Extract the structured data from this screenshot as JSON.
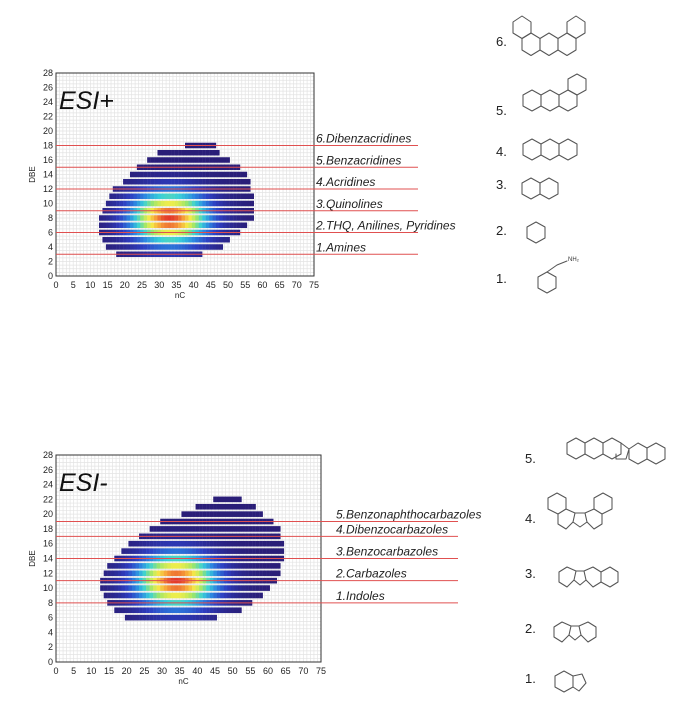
{
  "chart_data": [
    {
      "type": "heatmap",
      "panel_label": "ESI+",
      "xlabel": "nC",
      "ylabel": "DBE",
      "xlim": [
        0,
        75
      ],
      "ylim": [
        0,
        28
      ],
      "xticks": [
        0,
        5,
        10,
        15,
        20,
        25,
        30,
        35,
        40,
        45,
        50,
        55,
        60,
        65,
        70,
        75
      ],
      "yticks": [
        0,
        2,
        4,
        6,
        8,
        10,
        12,
        14,
        16,
        18,
        20,
        22,
        24,
        26,
        28
      ],
      "grid": true,
      "intensity_peak": {
        "nC": 33,
        "DBE": 8
      },
      "rows": [
        {
          "dbe": 3,
          "nc_min": 18,
          "nc_max": 42
        },
        {
          "dbe": 4,
          "nc_min": 15,
          "nc_max": 48
        },
        {
          "dbe": 5,
          "nc_min": 14,
          "nc_max": 50
        },
        {
          "dbe": 6,
          "nc_min": 13,
          "nc_max": 53
        },
        {
          "dbe": 7,
          "nc_min": 13,
          "nc_max": 55
        },
        {
          "dbe": 8,
          "nc_min": 13,
          "nc_max": 57
        },
        {
          "dbe": 9,
          "nc_min": 14,
          "nc_max": 57
        },
        {
          "dbe": 10,
          "nc_min": 15,
          "nc_max": 57
        },
        {
          "dbe": 11,
          "nc_min": 16,
          "nc_max": 57
        },
        {
          "dbe": 12,
          "nc_min": 17,
          "nc_max": 56
        },
        {
          "dbe": 13,
          "nc_min": 20,
          "nc_max": 56
        },
        {
          "dbe": 14,
          "nc_min": 22,
          "nc_max": 55
        },
        {
          "dbe": 15,
          "nc_min": 24,
          "nc_max": 53
        },
        {
          "dbe": 16,
          "nc_min": 27,
          "nc_max": 50
        },
        {
          "dbe": 17,
          "nc_min": 30,
          "nc_max": 47
        },
        {
          "dbe": 18,
          "nc_min": 38,
          "nc_max": 46
        }
      ],
      "class_lines": [
        {
          "dbe": 3,
          "label": "1.Amines"
        },
        {
          "dbe": 6,
          "label": "2.THQ, Anilines, Pyridines"
        },
        {
          "dbe": 9,
          "label": "3.Quinolines"
        },
        {
          "dbe": 12,
          "label": "4.Acridines"
        },
        {
          "dbe": 15,
          "label": "5.Benzacridines"
        },
        {
          "dbe": 18,
          "label": "6.Dibenzacridines"
        }
      ],
      "structure_labels": [
        "6.",
        "5.",
        "4.",
        "3.",
        "2.",
        "1."
      ],
      "structure_subscript": "NH₂"
    },
    {
      "type": "heatmap",
      "panel_label": "ESI-",
      "xlabel": "nC",
      "ylabel": "DBE",
      "xlim": [
        0,
        75
      ],
      "ylim": [
        0,
        28
      ],
      "xticks": [
        0,
        5,
        10,
        15,
        20,
        25,
        30,
        35,
        40,
        45,
        50,
        55,
        60,
        65,
        70,
        75
      ],
      "yticks": [
        0,
        2,
        4,
        6,
        8,
        10,
        12,
        14,
        16,
        18,
        20,
        22,
        24,
        26,
        28
      ],
      "grid": true,
      "intensity_peak": {
        "nC": 34,
        "DBE": 11
      },
      "rows": [
        {
          "dbe": 6,
          "nc_min": 20,
          "nc_max": 45
        },
        {
          "dbe": 7,
          "nc_min": 17,
          "nc_max": 52
        },
        {
          "dbe": 8,
          "nc_min": 15,
          "nc_max": 55
        },
        {
          "dbe": 9,
          "nc_min": 14,
          "nc_max": 58
        },
        {
          "dbe": 10,
          "nc_min": 13,
          "nc_max": 60
        },
        {
          "dbe": 11,
          "nc_min": 13,
          "nc_max": 62
        },
        {
          "dbe": 12,
          "nc_min": 14,
          "nc_max": 63
        },
        {
          "dbe": 13,
          "nc_min": 15,
          "nc_max": 63
        },
        {
          "dbe": 14,
          "nc_min": 17,
          "nc_max": 64
        },
        {
          "dbe": 15,
          "nc_min": 19,
          "nc_max": 64
        },
        {
          "dbe": 16,
          "nc_min": 21,
          "nc_max": 64
        },
        {
          "dbe": 17,
          "nc_min": 24,
          "nc_max": 63
        },
        {
          "dbe": 18,
          "nc_min": 27,
          "nc_max": 63
        },
        {
          "dbe": 19,
          "nc_min": 30,
          "nc_max": 61
        },
        {
          "dbe": 20,
          "nc_min": 36,
          "nc_max": 58
        },
        {
          "dbe": 21,
          "nc_min": 40,
          "nc_max": 56
        },
        {
          "dbe": 22,
          "nc_min": 45,
          "nc_max": 52
        }
      ],
      "class_lines": [
        {
          "dbe": 8,
          "label": "1.Indoles"
        },
        {
          "dbe": 11,
          "label": "2.Carbazoles"
        },
        {
          "dbe": 14,
          "label": "3.Benzocarbazoles"
        },
        {
          "dbe": 17,
          "label": "4.Dibenzocarbazoles"
        },
        {
          "dbe": 19,
          "label": "5.Benzonaphthocarbazoles"
        }
      ],
      "structure_labels": [
        "5.",
        "4.",
        "3.",
        "2.",
        "1."
      ]
    }
  ],
  "colors": {
    "class_line": "#e05050",
    "grid": "#e3e3e3",
    "colormap": [
      "#2a1e78",
      "#2d3ec2",
      "#2c86e0",
      "#38d0d8",
      "#9ce66a",
      "#f3ee4a",
      "#f7a43a",
      "#e33a2a"
    ]
  }
}
